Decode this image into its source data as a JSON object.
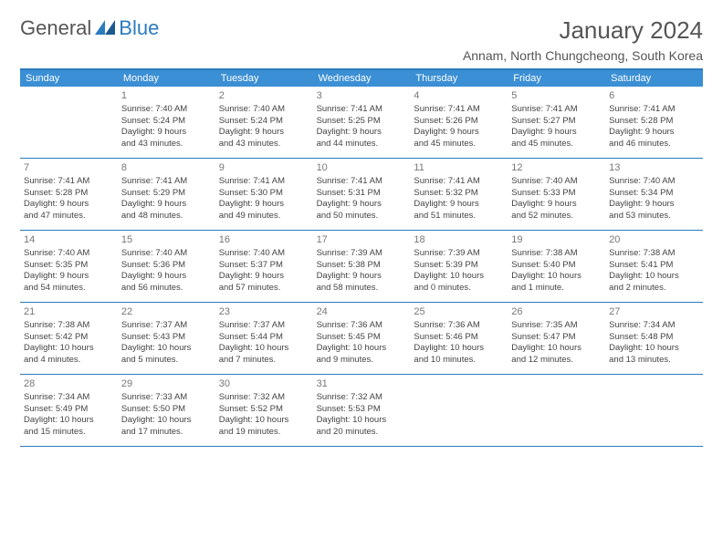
{
  "logo": {
    "text_a": "General",
    "text_b": "Blue"
  },
  "header": {
    "month_title": "January 2024",
    "location": "Annam, North Chungcheong, South Korea"
  },
  "colors": {
    "header_bar": "#3b8fd4",
    "border": "#2b7bbf",
    "logo_blue": "#2b7bbf",
    "text": "#444444",
    "muted": "#777777",
    "bg": "#ffffff"
  },
  "weekdays": [
    "Sunday",
    "Monday",
    "Tuesday",
    "Wednesday",
    "Thursday",
    "Friday",
    "Saturday"
  ],
  "first_weekday_index": 1,
  "days": [
    {
      "n": 1,
      "sunrise": "7:40 AM",
      "sunset": "5:24 PM",
      "daylight": "9 hours and 43 minutes."
    },
    {
      "n": 2,
      "sunrise": "7:40 AM",
      "sunset": "5:24 PM",
      "daylight": "9 hours and 43 minutes."
    },
    {
      "n": 3,
      "sunrise": "7:41 AM",
      "sunset": "5:25 PM",
      "daylight": "9 hours and 44 minutes."
    },
    {
      "n": 4,
      "sunrise": "7:41 AM",
      "sunset": "5:26 PM",
      "daylight": "9 hours and 45 minutes."
    },
    {
      "n": 5,
      "sunrise": "7:41 AM",
      "sunset": "5:27 PM",
      "daylight": "9 hours and 45 minutes."
    },
    {
      "n": 6,
      "sunrise": "7:41 AM",
      "sunset": "5:28 PM",
      "daylight": "9 hours and 46 minutes."
    },
    {
      "n": 7,
      "sunrise": "7:41 AM",
      "sunset": "5:28 PM",
      "daylight": "9 hours and 47 minutes."
    },
    {
      "n": 8,
      "sunrise": "7:41 AM",
      "sunset": "5:29 PM",
      "daylight": "9 hours and 48 minutes."
    },
    {
      "n": 9,
      "sunrise": "7:41 AM",
      "sunset": "5:30 PM",
      "daylight": "9 hours and 49 minutes."
    },
    {
      "n": 10,
      "sunrise": "7:41 AM",
      "sunset": "5:31 PM",
      "daylight": "9 hours and 50 minutes."
    },
    {
      "n": 11,
      "sunrise": "7:41 AM",
      "sunset": "5:32 PM",
      "daylight": "9 hours and 51 minutes."
    },
    {
      "n": 12,
      "sunrise": "7:40 AM",
      "sunset": "5:33 PM",
      "daylight": "9 hours and 52 minutes."
    },
    {
      "n": 13,
      "sunrise": "7:40 AM",
      "sunset": "5:34 PM",
      "daylight": "9 hours and 53 minutes."
    },
    {
      "n": 14,
      "sunrise": "7:40 AM",
      "sunset": "5:35 PM",
      "daylight": "9 hours and 54 minutes."
    },
    {
      "n": 15,
      "sunrise": "7:40 AM",
      "sunset": "5:36 PM",
      "daylight": "9 hours and 56 minutes."
    },
    {
      "n": 16,
      "sunrise": "7:40 AM",
      "sunset": "5:37 PM",
      "daylight": "9 hours and 57 minutes."
    },
    {
      "n": 17,
      "sunrise": "7:39 AM",
      "sunset": "5:38 PM",
      "daylight": "9 hours and 58 minutes."
    },
    {
      "n": 18,
      "sunrise": "7:39 AM",
      "sunset": "5:39 PM",
      "daylight": "10 hours and 0 minutes."
    },
    {
      "n": 19,
      "sunrise": "7:38 AM",
      "sunset": "5:40 PM",
      "daylight": "10 hours and 1 minute."
    },
    {
      "n": 20,
      "sunrise": "7:38 AM",
      "sunset": "5:41 PM",
      "daylight": "10 hours and 2 minutes."
    },
    {
      "n": 21,
      "sunrise": "7:38 AM",
      "sunset": "5:42 PM",
      "daylight": "10 hours and 4 minutes."
    },
    {
      "n": 22,
      "sunrise": "7:37 AM",
      "sunset": "5:43 PM",
      "daylight": "10 hours and 5 minutes."
    },
    {
      "n": 23,
      "sunrise": "7:37 AM",
      "sunset": "5:44 PM",
      "daylight": "10 hours and 7 minutes."
    },
    {
      "n": 24,
      "sunrise": "7:36 AM",
      "sunset": "5:45 PM",
      "daylight": "10 hours and 9 minutes."
    },
    {
      "n": 25,
      "sunrise": "7:36 AM",
      "sunset": "5:46 PM",
      "daylight": "10 hours and 10 minutes."
    },
    {
      "n": 26,
      "sunrise": "7:35 AM",
      "sunset": "5:47 PM",
      "daylight": "10 hours and 12 minutes."
    },
    {
      "n": 27,
      "sunrise": "7:34 AM",
      "sunset": "5:48 PM",
      "daylight": "10 hours and 13 minutes."
    },
    {
      "n": 28,
      "sunrise": "7:34 AM",
      "sunset": "5:49 PM",
      "daylight": "10 hours and 15 minutes."
    },
    {
      "n": 29,
      "sunrise": "7:33 AM",
      "sunset": "5:50 PM",
      "daylight": "10 hours and 17 minutes."
    },
    {
      "n": 30,
      "sunrise": "7:32 AM",
      "sunset": "5:52 PM",
      "daylight": "10 hours and 19 minutes."
    },
    {
      "n": 31,
      "sunrise": "7:32 AM",
      "sunset": "5:53 PM",
      "daylight": "10 hours and 20 minutes."
    }
  ],
  "labels": {
    "sunrise": "Sunrise:",
    "sunset": "Sunset:",
    "daylight": "Daylight:"
  }
}
